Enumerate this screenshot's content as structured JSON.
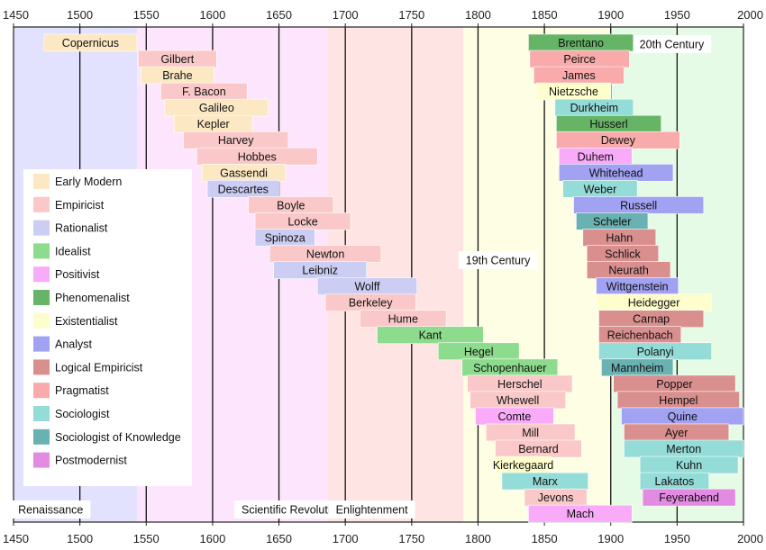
{
  "chart_data": {
    "type": "timeline",
    "title": "",
    "xlabel": "",
    "ylabel": "",
    "xlim": [
      1450,
      2000
    ],
    "ticks": [
      1450,
      1500,
      1550,
      1600,
      1650,
      1700,
      1750,
      1800,
      1850,
      1900,
      1950,
      2000
    ],
    "gridlines": [
      1500,
      1550,
      1600,
      1650,
      1700,
      1750,
      1800,
      1850,
      1900,
      1950
    ],
    "eras": [
      {
        "name": "Renaissance",
        "start": 1450,
        "end": 1543,
        "color": "#e2e2ff"
      },
      {
        "name": "Scientific Revolution",
        "start": 1543,
        "end": 1687,
        "color": "#fde6fd"
      },
      {
        "name": "Enlightenment",
        "start": 1687,
        "end": 1789,
        "color": "#ffe4e4"
      },
      {
        "name": "19th Century",
        "start": 1789,
        "end": 1901,
        "color": "#fefee5"
      },
      {
        "name": "20th Century",
        "start": 1901,
        "end": 2000,
        "color": "#e5fbe5"
      }
    ],
    "legend": [
      {
        "label": "Early Modern",
        "color": "#fde8c4"
      },
      {
        "label": "Empiricist",
        "color": "#fac8c8"
      },
      {
        "label": "Rationalist",
        "color": "#cbcdf2"
      },
      {
        "label": "Idealist",
        "color": "#8ddc8d"
      },
      {
        "label": "Positivist",
        "color": "#f9aaf9"
      },
      {
        "label": "Phenomenalist",
        "color": "#66b566"
      },
      {
        "label": "Existentialist",
        "color": "#fefecc"
      },
      {
        "label": "Analyst",
        "color": "#a2a2f3"
      },
      {
        "label": "Logical Empiricist",
        "color": "#da8f8f"
      },
      {
        "label": "Pragmatist",
        "color": "#f9aaaa"
      },
      {
        "label": "Sociologist",
        "color": "#94dcd7"
      },
      {
        "label": "Sociologist of Knowledge",
        "color": "#6ab1b1"
      },
      {
        "label": "Postmodernist",
        "color": "#e38ae3"
      }
    ],
    "series": [
      {
        "name": "Copernicus",
        "start": 1473,
        "end": 1543,
        "school": "Early Modern"
      },
      {
        "name": "Gilbert",
        "start": 1544,
        "end": 1603,
        "school": "Empiricist"
      },
      {
        "name": "Brahe",
        "start": 1546,
        "end": 1601,
        "school": "Early Modern"
      },
      {
        "name": "F. Bacon",
        "start": 1561,
        "end": 1626,
        "school": "Empiricist"
      },
      {
        "name": "Galileo",
        "start": 1564,
        "end": 1642,
        "school": "Early Modern"
      },
      {
        "name": "Kepler",
        "start": 1571,
        "end": 1630,
        "school": "Early Modern"
      },
      {
        "name": "Harvey",
        "start": 1578,
        "end": 1657,
        "school": "Empiricist"
      },
      {
        "name": "Hobbes",
        "start": 1588,
        "end": 1679,
        "school": "Empiricist"
      },
      {
        "name": "Gassendi",
        "start": 1592,
        "end": 1655,
        "school": "Early Modern"
      },
      {
        "name": "Descartes",
        "start": 1596,
        "end": 1650,
        "school": "Rationalist"
      },
      {
        "name": "Boyle",
        "start": 1627,
        "end": 1691,
        "school": "Empiricist"
      },
      {
        "name": "Locke",
        "start": 1632,
        "end": 1704,
        "school": "Empiricist"
      },
      {
        "name": "Spinoza",
        "start": 1632,
        "end": 1677,
        "school": "Rationalist"
      },
      {
        "name": "Newton",
        "start": 1643,
        "end": 1727,
        "school": "Empiricist"
      },
      {
        "name": "Leibniz",
        "start": 1646,
        "end": 1716,
        "school": "Rationalist"
      },
      {
        "name": "Wolff",
        "start": 1679,
        "end": 1754,
        "school": "Rationalist"
      },
      {
        "name": "Berkeley",
        "start": 1685,
        "end": 1753,
        "school": "Empiricist"
      },
      {
        "name": "Hume",
        "start": 1711,
        "end": 1776,
        "school": "Empiricist"
      },
      {
        "name": "Kant",
        "start": 1724,
        "end": 1804,
        "school": "Idealist"
      },
      {
        "name": "Hegel",
        "start": 1770,
        "end": 1831,
        "school": "Idealist"
      },
      {
        "name": "Schopenhauer",
        "start": 1788,
        "end": 1860,
        "school": "Idealist"
      },
      {
        "name": "Herschel",
        "start": 1792,
        "end": 1871,
        "school": "Empiricist"
      },
      {
        "name": "Whewell",
        "start": 1794,
        "end": 1866,
        "school": "Empiricist"
      },
      {
        "name": "Comte",
        "start": 1798,
        "end": 1857,
        "school": "Positivist"
      },
      {
        "name": "Mill",
        "start": 1806,
        "end": 1873,
        "school": "Empiricist"
      },
      {
        "name": "Bernard",
        "start": 1813,
        "end": 1878,
        "school": "Empiricist"
      },
      {
        "name": "Kierkegaard",
        "start": 1813,
        "end": 1855,
        "school": "Existentialist"
      },
      {
        "name": "Marx",
        "start": 1818,
        "end": 1883,
        "school": "Sociologist"
      },
      {
        "name": "Jevons",
        "start": 1835,
        "end": 1882,
        "school": "Empiricist"
      },
      {
        "name": "Mach",
        "start": 1838,
        "end": 1916,
        "school": "Positivist"
      },
      {
        "name": "Brentano",
        "start": 1838,
        "end": 1917,
        "school": "Phenomenalist"
      },
      {
        "name": "Peirce",
        "start": 1839,
        "end": 1914,
        "school": "Pragmatist"
      },
      {
        "name": "James",
        "start": 1842,
        "end": 1910,
        "school": "Pragmatist"
      },
      {
        "name": "Nietzsche",
        "start": 1844,
        "end": 1900,
        "school": "Existentialist"
      },
      {
        "name": "Durkheim",
        "start": 1858,
        "end": 1917,
        "school": "Sociologist"
      },
      {
        "name": "Husserl",
        "start": 1859,
        "end": 1938,
        "school": "Phenomenalist"
      },
      {
        "name": "Dewey",
        "start": 1859,
        "end": 1952,
        "school": "Pragmatist"
      },
      {
        "name": "Duhem",
        "start": 1861,
        "end": 1916,
        "school": "Positivist"
      },
      {
        "name": "Whitehead",
        "start": 1861,
        "end": 1947,
        "school": "Analyst"
      },
      {
        "name": "Weber",
        "start": 1864,
        "end": 1920,
        "school": "Sociologist"
      },
      {
        "name": "Russell",
        "start": 1872,
        "end": 1970,
        "school": "Analyst"
      },
      {
        "name": "Scheler",
        "start": 1874,
        "end": 1928,
        "school": "Sociologist of Knowledge"
      },
      {
        "name": "Hahn",
        "start": 1879,
        "end": 1934,
        "school": "Logical Empiricist"
      },
      {
        "name": "Schlick",
        "start": 1882,
        "end": 1936,
        "school": "Logical Empiricist"
      },
      {
        "name": "Neurath",
        "start": 1882,
        "end": 1945,
        "school": "Logical Empiricist"
      },
      {
        "name": "Wittgenstein",
        "start": 1889,
        "end": 1951,
        "school": "Analyst"
      },
      {
        "name": "Heidegger",
        "start": 1889,
        "end": 1976,
        "school": "Existentialist"
      },
      {
        "name": "Carnap",
        "start": 1891,
        "end": 1970,
        "school": "Logical Empiricist"
      },
      {
        "name": "Reichenbach",
        "start": 1891,
        "end": 1953,
        "school": "Logical Empiricist"
      },
      {
        "name": "Polanyi",
        "start": 1891,
        "end": 1976,
        "school": "Sociologist"
      },
      {
        "name": "Mannheim",
        "start": 1893,
        "end": 1947,
        "school": "Sociologist of Knowledge"
      },
      {
        "name": "Popper",
        "start": 1902,
        "end": 1994,
        "school": "Logical Empiricist"
      },
      {
        "name": "Hempel",
        "start": 1905,
        "end": 1997,
        "school": "Logical Empiricist"
      },
      {
        "name": "Quine",
        "start": 1908,
        "end": 2000,
        "school": "Analyst"
      },
      {
        "name": "Ayer",
        "start": 1910,
        "end": 1989,
        "school": "Logical Empiricist"
      },
      {
        "name": "Merton",
        "start": 1910,
        "end": 2003,
        "school": "Sociologist"
      },
      {
        "name": "Kuhn",
        "start": 1922,
        "end": 1996,
        "school": "Sociologist"
      },
      {
        "name": "Lakatos",
        "start": 1922,
        "end": 1974,
        "school": "Sociologist"
      },
      {
        "name": "Feyerabend",
        "start": 1924,
        "end": 1994,
        "school": "Postmodernist"
      }
    ]
  }
}
